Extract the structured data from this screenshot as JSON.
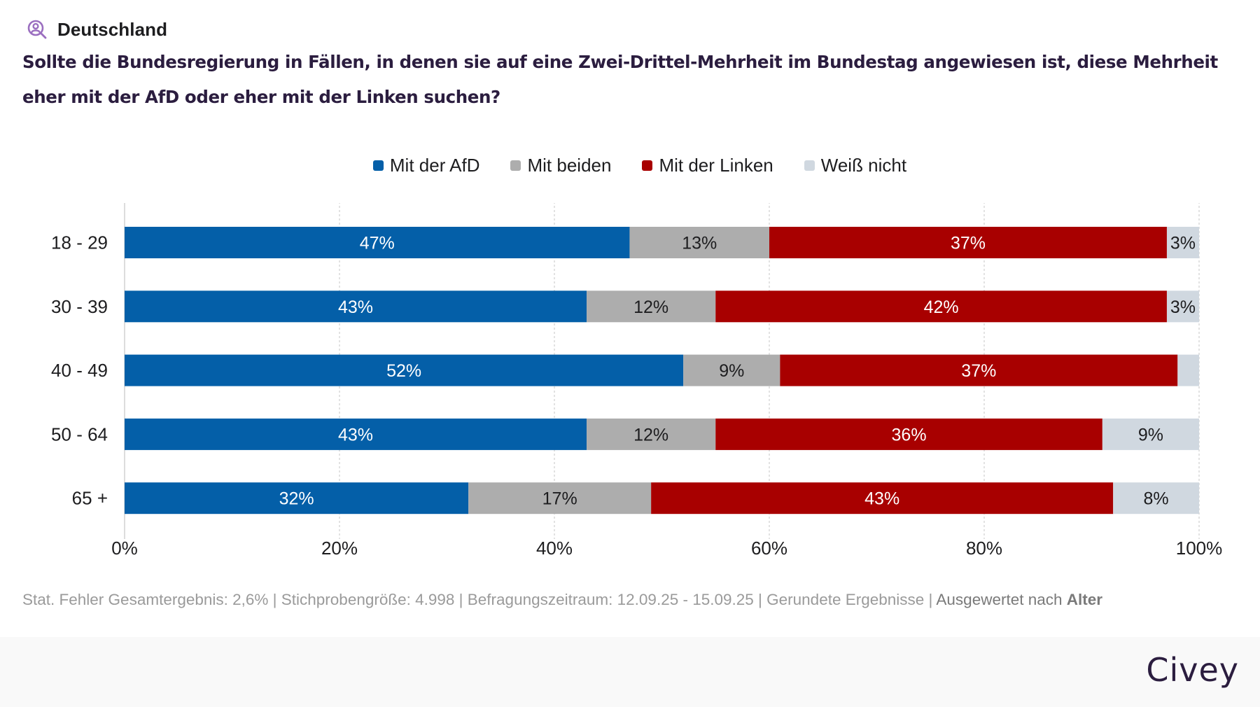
{
  "header": {
    "location_icon": "person-search-icon",
    "location": "Deutschland",
    "title": "Sollte die Bundesregierung in Fällen, in denen sie auf eine Zwei-Drittel-Mehrheit im Bundestag angewiesen ist, diese Mehrheit eher mit der AfD oder eher mit der Linken suchen?"
  },
  "colors": {
    "afd": "#045fa8",
    "beiden": "#adadad",
    "linken": "#a80000",
    "weiss_nicht": "#d0d8e0",
    "title": "#2b1d3f",
    "location_icon": "#9b6fc0"
  },
  "chart_data": {
    "type": "bar",
    "orientation": "horizontal",
    "stacked": true,
    "title": "Sollte die Bundesregierung in Fällen, in denen sie auf eine Zwei-Drittel-Mehrheit im Bundestag angewiesen ist, diese Mehrheit eher mit der AfD oder eher mit der Linken suchen?",
    "xlabel": "",
    "ylabel": "",
    "xlim": [
      0,
      100
    ],
    "x_ticks": [
      "0%",
      "20%",
      "40%",
      "60%",
      "80%",
      "100%"
    ],
    "x_tick_values": [
      0,
      20,
      40,
      60,
      80,
      100
    ],
    "grid": true,
    "legend_position": "top-center",
    "categories": [
      "18 - 29",
      "30 - 39",
      "40 - 49",
      "50 - 64",
      "65 +"
    ],
    "series": [
      {
        "name": "Mit der AfD",
        "color_key": "afd",
        "values": [
          47,
          43,
          52,
          43,
          32
        ],
        "labels": [
          "47%",
          "43%",
          "52%",
          "43%",
          "32%"
        ],
        "label_color": "#ffffff"
      },
      {
        "name": "Mit beiden",
        "color_key": "beiden",
        "values": [
          13,
          12,
          9,
          12,
          17
        ],
        "labels": [
          "13%",
          "12%",
          "9%",
          "12%",
          "17%"
        ],
        "label_color": "#1d1d1f"
      },
      {
        "name": "Mit der Linken",
        "color_key": "linken",
        "values": [
          37,
          42,
          37,
          36,
          43
        ],
        "labels": [
          "37%",
          "42%",
          "37%",
          "36%",
          "43%"
        ],
        "label_color": "#ffffff"
      },
      {
        "name": "Weiß nicht",
        "color_key": "weiss_nicht",
        "values": [
          3,
          3,
          2,
          9,
          8
        ],
        "labels": [
          "3%",
          "3%",
          "",
          "9%",
          "8%"
        ],
        "label_color": "#1d1d1f"
      }
    ]
  },
  "footer": {
    "note": "Stat. Fehler Gesamtergebnis: 2,6% | Stichprobengröße: 4.998 | Befragungszeitraum: 12.09.25 - 15.09.25 | Gerundete Ergebnisse | ",
    "evaluated_prefix": "Ausgewertet nach ",
    "evaluated_by": "Alter",
    "brand": "Civey"
  }
}
